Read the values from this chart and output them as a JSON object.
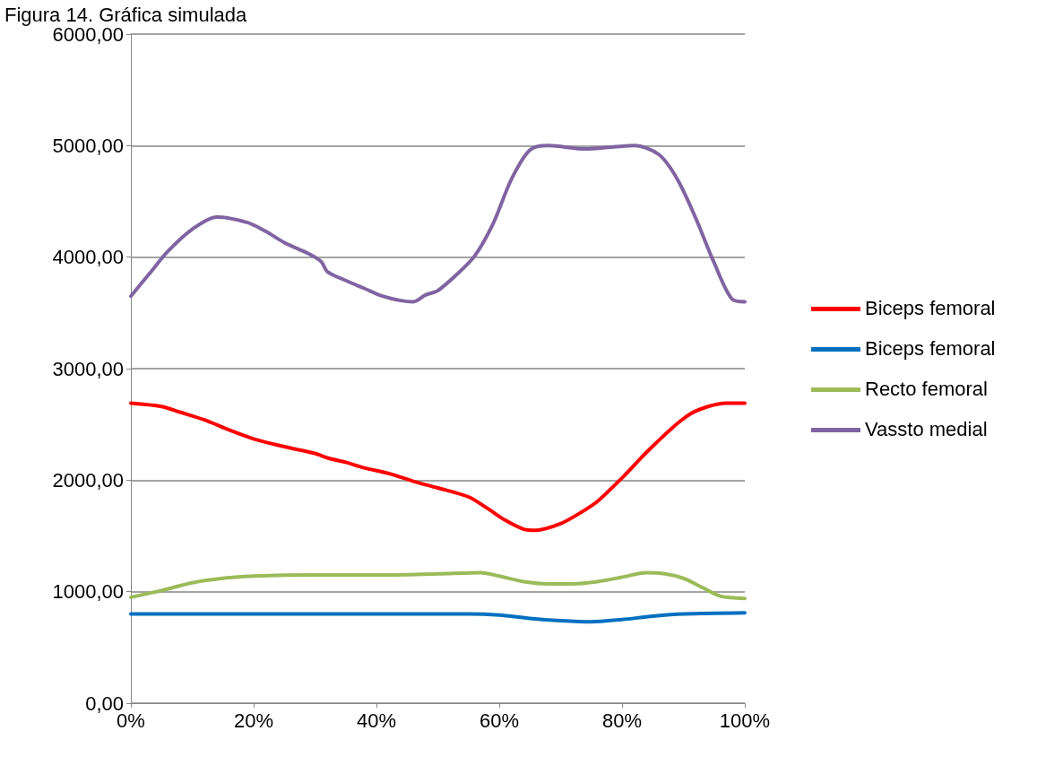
{
  "chart_data": {
    "type": "line",
    "title": "Figura 14. Gráfica simulada",
    "xlim": [
      0,
      100
    ],
    "xticks": [
      {
        "value": 0,
        "label": "0%"
      },
      {
        "value": 20,
        "label": "20%"
      },
      {
        "value": 40,
        "label": "40%"
      },
      {
        "value": 60,
        "label": "60%"
      },
      {
        "value": 80,
        "label": "80%"
      },
      {
        "value": 100,
        "label": "100%"
      }
    ],
    "ylim": [
      0,
      6000
    ],
    "yticks": [
      {
        "value": 0,
        "label": "0,00"
      },
      {
        "value": 1000,
        "label": "1000,00"
      },
      {
        "value": 2000,
        "label": "2000,00"
      },
      {
        "value": 3000,
        "label": "3000,00"
      },
      {
        "value": 4000,
        "label": "4000,00"
      },
      {
        "value": 5000,
        "label": "5000,00"
      },
      {
        "value": 6000,
        "label": "6000,00"
      }
    ],
    "grid": "y",
    "legend": "right",
    "marker": "none",
    "line_style": "solid",
    "series": [
      {
        "name": "Biceps femoral",
        "color": "#ff0000",
        "x": [
          0,
          5,
          8,
          12,
          16,
          20,
          25,
          30,
          32,
          35,
          38,
          42,
          46,
          50,
          55,
          58,
          61,
          64,
          66,
          70,
          73,
          76,
          80,
          84,
          88,
          91,
          94,
          97,
          100
        ],
        "values": [
          2690,
          2660,
          2610,
          2540,
          2450,
          2370,
          2300,
          2240,
          2200,
          2160,
          2110,
          2060,
          1990,
          1930,
          1850,
          1750,
          1640,
          1560,
          1550,
          1610,
          1700,
          1810,
          2020,
          2250,
          2460,
          2590,
          2660,
          2690,
          2690
        ]
      },
      {
        "name": "Biceps femoral",
        "color": "#0070c0",
        "x": [
          0,
          20,
          40,
          55,
          60,
          65,
          70,
          75,
          80,
          85,
          90,
          100
        ],
        "values": [
          800,
          800,
          800,
          800,
          790,
          760,
          740,
          730,
          750,
          780,
          800,
          810
        ]
      },
      {
        "name": "Recto femoral",
        "color": "#9bbb59",
        "x": [
          0,
          5,
          10,
          15,
          20,
          30,
          40,
          50,
          57,
          60,
          64,
          68,
          72,
          76,
          80,
          84,
          87,
          90,
          93,
          96,
          100
        ],
        "values": [
          950,
          1010,
          1080,
          1120,
          1140,
          1150,
          1150,
          1160,
          1170,
          1140,
          1090,
          1070,
          1070,
          1090,
          1130,
          1170,
          1160,
          1120,
          1040,
          960,
          940
        ]
      },
      {
        "name": "Vassto medial",
        "color": "#8064a2",
        "x": [
          0,
          3,
          6,
          10,
          14,
          19,
          22,
          25,
          29,
          31,
          32,
          35,
          38,
          41,
          44,
          46,
          48,
          50,
          53,
          56,
          59,
          62,
          65,
          68,
          74,
          79,
          82,
          86,
          89,
          92,
          95,
          98,
          100
        ],
        "values": [
          3650,
          3850,
          4050,
          4250,
          4360,
          4310,
          4230,
          4130,
          4030,
          3960,
          3870,
          3790,
          3720,
          3650,
          3610,
          3600,
          3660,
          3700,
          3840,
          4010,
          4300,
          4700,
          4960,
          5000,
          4970,
          4990,
          5000,
          4920,
          4700,
          4350,
          3950,
          3620,
          3600
        ]
      }
    ]
  }
}
